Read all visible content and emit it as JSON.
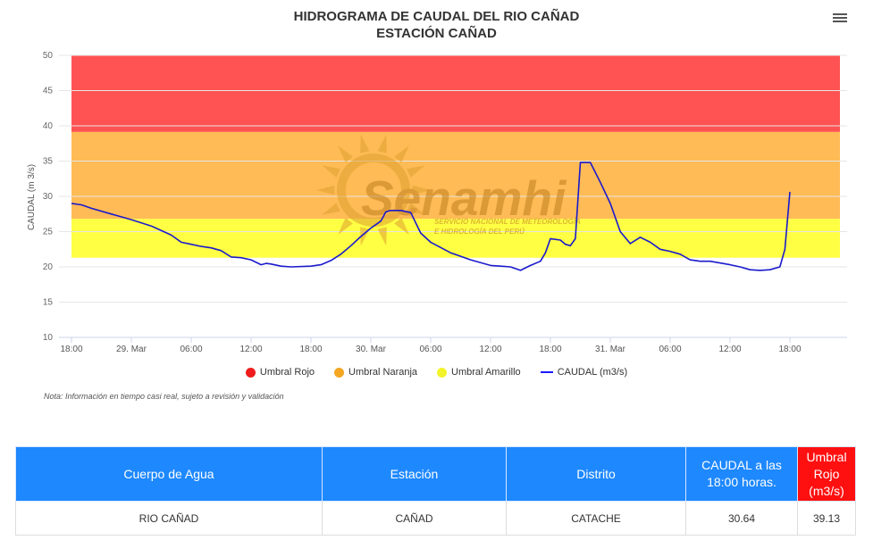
{
  "header": {
    "title_line1": "HIDROGRAMA DE CAUDAL DEL RIO CAÑAD",
    "title_line2": "ESTACIÓN CAÑAD"
  },
  "watermark": {
    "brand": "Senamhi",
    "line1": "SERVICIO NACIONAL DE METEOROLOGÍA",
    "line2": "E HIDROLOGÍA DEL PERÚ"
  },
  "note": "Nota: Información en tiempo casi real, sujeto a revisión y validación",
  "table": {
    "headers": [
      "Cuerpo de Agua",
      "Estación",
      "Distrito",
      "CAUDAL a las 18:00 horas.",
      "Umbral Rojo (m3/s)"
    ],
    "row": [
      "RIO CAÑAD",
      "CAÑAD",
      "CATACHE",
      "30.64",
      "39.13"
    ]
  },
  "chart_data": {
    "type": "line",
    "ylabel": "CAUDAL (m 3/s)",
    "ylim": [
      10,
      50
    ],
    "yticks": [
      10,
      15,
      20,
      25,
      30,
      35,
      40,
      45,
      50
    ],
    "xlim_hours": [
      0,
      65
    ],
    "xticks": [
      {
        "h": 0,
        "label": "18:00"
      },
      {
        "h": 6,
        "label": "29. Mar"
      },
      {
        "h": 12,
        "label": "06:00"
      },
      {
        "h": 18,
        "label": "12:00"
      },
      {
        "h": 24,
        "label": "18:00"
      },
      {
        "h": 30,
        "label": "30. Mar"
      },
      {
        "h": 36,
        "label": "06:00"
      },
      {
        "h": 42,
        "label": "12:00"
      },
      {
        "h": 48,
        "label": "18:00"
      },
      {
        "h": 54,
        "label": "31. Mar"
      },
      {
        "h": 60,
        "label": "06:00"
      },
      {
        "h": 66,
        "label": "12:00"
      },
      {
        "h": 72,
        "label": "18:00"
      }
    ],
    "bands": [
      {
        "name": "Umbral Rojo",
        "from": 39.13,
        "to": 50,
        "color": "#ff5252",
        "legend_color": "#ee1c1c"
      },
      {
        "name": "Umbral Naranja",
        "from": 26.8,
        "to": 39.13,
        "color": "#ffbb55",
        "legend_color": "#f5a623"
      },
      {
        "name": "Umbral Amarillo",
        "from": 21.3,
        "to": 26.8,
        "color": "#ffff44",
        "legend_color": "#f3f32a"
      }
    ],
    "series": [
      {
        "name": "CAUDAL (m3/s)",
        "color": "#1a1acc",
        "x": [
          0,
          1,
          2,
          4,
          6,
          8,
          10,
          11,
          12,
          13,
          14,
          15,
          16,
          17,
          18,
          19,
          19.5,
          20,
          21,
          22,
          24,
          25,
          26,
          27,
          28,
          29,
          30,
          31,
          31.5,
          32,
          33,
          34,
          35,
          36,
          38,
          40,
          42,
          43,
          44,
          45,
          46,
          47,
          47.5,
          48,
          49,
          49.5,
          50,
          50.5,
          51,
          52,
          53,
          54,
          54.5,
          55,
          56,
          57,
          58,
          59,
          60,
          61,
          62,
          63,
          64,
          66,
          67,
          68,
          69,
          70,
          71,
          71.5,
          72
        ],
        "y": [
          29,
          28.8,
          28.3,
          27.5,
          26.7,
          25.8,
          24.5,
          23.5,
          23.2,
          22.9,
          22.7,
          22.3,
          21.4,
          21.3,
          21.0,
          20.3,
          20.5,
          20.4,
          20.1,
          20.0,
          20.1,
          20.3,
          20.9,
          21.8,
          23.0,
          24.3,
          25.5,
          26.5,
          27.8,
          28.0,
          28.0,
          27.7,
          24.8,
          23.5,
          22.0,
          21.0,
          20.2,
          20.1,
          20.0,
          19.5,
          20.2,
          20.8,
          22.0,
          24.0,
          23.8,
          23.2,
          23.0,
          24.0,
          34.8,
          34.8,
          32.0,
          29.0,
          27.0,
          25.0,
          23.3,
          24.2,
          23.5,
          22.5,
          22.2,
          21.8,
          21.0,
          20.8,
          20.8,
          20.3,
          20.0,
          19.6,
          19.5,
          19.6,
          20.0,
          22.5,
          30.64
        ]
      }
    ],
    "legend": {
      "position": "bottom-center"
    }
  }
}
